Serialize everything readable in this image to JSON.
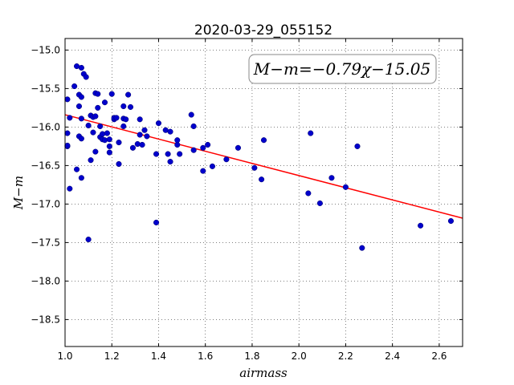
{
  "chart_data": {
    "type": "scatter",
    "title": "2020-03-29_055152",
    "xlabel": "airmass",
    "ylabel": "M−m",
    "annotation": "M−m=−0.79χ−15.05",
    "xlim": [
      1.0,
      2.7
    ],
    "ylim": [
      -18.85,
      -14.85
    ],
    "y_inverted": true,
    "grid": true,
    "x_ticks": [
      1.0,
      1.2,
      1.4,
      1.6,
      1.8,
      2.0,
      2.2,
      2.4,
      2.6
    ],
    "x_tick_labels": [
      "1.0",
      "1.2",
      "1.4",
      "1.6",
      "1.8",
      "2.0",
      "2.2",
      "2.4",
      "2.6"
    ],
    "y_ticks": [
      -15.0,
      -15.5,
      -16.0,
      -16.5,
      -17.0,
      -17.5,
      -18.0,
      -18.5
    ],
    "y_tick_labels": [
      "−15.0",
      "−15.5",
      "−16.0",
      "−16.5",
      "−17.0",
      "−17.5",
      "−18.0",
      "−18.5"
    ],
    "fit": {
      "slope": -0.79,
      "intercept": -15.05,
      "color": "#ff0000"
    },
    "marker_color": "#0000cc",
    "points": [
      [
        1.01,
        -16.25
      ],
      [
        1.01,
        -16.24
      ],
      [
        1.01,
        -15.64
      ],
      [
        1.01,
        -16.08
      ],
      [
        1.02,
        -15.88
      ],
      [
        1.02,
        -16.8
      ],
      [
        1.04,
        -15.47
      ],
      [
        1.05,
        -15.21
      ],
      [
        1.05,
        -16.55
      ],
      [
        1.06,
        -15.73
      ],
      [
        1.06,
        -16.12
      ],
      [
        1.06,
        -15.58
      ],
      [
        1.07,
        -15.23
      ],
      [
        1.07,
        -15.61
      ],
      [
        1.07,
        -15.89
      ],
      [
        1.07,
        -16.15
      ],
      [
        1.07,
        -16.66
      ],
      [
        1.08,
        -15.31
      ],
      [
        1.09,
        -15.35
      ],
      [
        1.1,
        -15.98
      ],
      [
        1.1,
        -17.46
      ],
      [
        1.11,
        -15.85
      ],
      [
        1.11,
        -16.43
      ],
      [
        1.12,
        -15.87
      ],
      [
        1.12,
        -16.07
      ],
      [
        1.13,
        -15.56
      ],
      [
        1.13,
        -16.32
      ],
      [
        1.13,
        -15.86
      ],
      [
        1.14,
        -15.75
      ],
      [
        1.14,
        -15.57
      ],
      [
        1.15,
        -16.13
      ],
      [
        1.15,
        -15.99
      ],
      [
        1.16,
        -16.09
      ],
      [
        1.16,
        -16.16
      ],
      [
        1.17,
        -15.68
      ],
      [
        1.17,
        -16.17
      ],
      [
        1.18,
        -16.08
      ],
      [
        1.19,
        -16.25
      ],
      [
        1.19,
        -16.33
      ],
      [
        1.19,
        -16.16
      ],
      [
        1.2,
        -15.57
      ],
      [
        1.21,
        -15.9
      ],
      [
        1.21,
        -15.88
      ],
      [
        1.22,
        -15.88
      ],
      [
        1.23,
        -16.2
      ],
      [
        1.23,
        -16.48
      ],
      [
        1.25,
        -15.99
      ],
      [
        1.25,
        -15.73
      ],
      [
        1.25,
        -15.89
      ],
      [
        1.26,
        -15.9
      ],
      [
        1.27,
        -15.58
      ],
      [
        1.28,
        -15.74
      ],
      [
        1.29,
        -16.27
      ],
      [
        1.31,
        -16.22
      ],
      [
        1.32,
        -16.1
      ],
      [
        1.32,
        -15.9
      ],
      [
        1.33,
        -16.23
      ],
      [
        1.34,
        -16.04
      ],
      [
        1.35,
        -16.12
      ],
      [
        1.39,
        -16.35
      ],
      [
        1.39,
        -17.24
      ],
      [
        1.4,
        -15.95
      ],
      [
        1.43,
        -16.04
      ],
      [
        1.44,
        -16.35
      ],
      [
        1.45,
        -16.06
      ],
      [
        1.45,
        -16.45
      ],
      [
        1.48,
        -16.23
      ],
      [
        1.48,
        -16.17
      ],
      [
        1.49,
        -16.35
      ],
      [
        1.54,
        -15.84
      ],
      [
        1.55,
        -15.99
      ],
      [
        1.55,
        -16.3
      ],
      [
        1.59,
        -16.57
      ],
      [
        1.59,
        -16.27
      ],
      [
        1.61,
        -16.23
      ],
      [
        1.63,
        -16.51
      ],
      [
        1.69,
        -16.42
      ],
      [
        1.74,
        -16.27
      ],
      [
        1.81,
        -16.53
      ],
      [
        1.84,
        -16.68
      ],
      [
        1.85,
        -16.17
      ],
      [
        2.04,
        -16.86
      ],
      [
        2.05,
        -16.08
      ],
      [
        2.09,
        -16.99
      ],
      [
        2.14,
        -16.66
      ],
      [
        2.2,
        -16.78
      ],
      [
        2.25,
        -16.25
      ],
      [
        2.27,
        -17.57
      ],
      [
        2.52,
        -17.28
      ],
      [
        2.65,
        -17.22
      ]
    ]
  }
}
